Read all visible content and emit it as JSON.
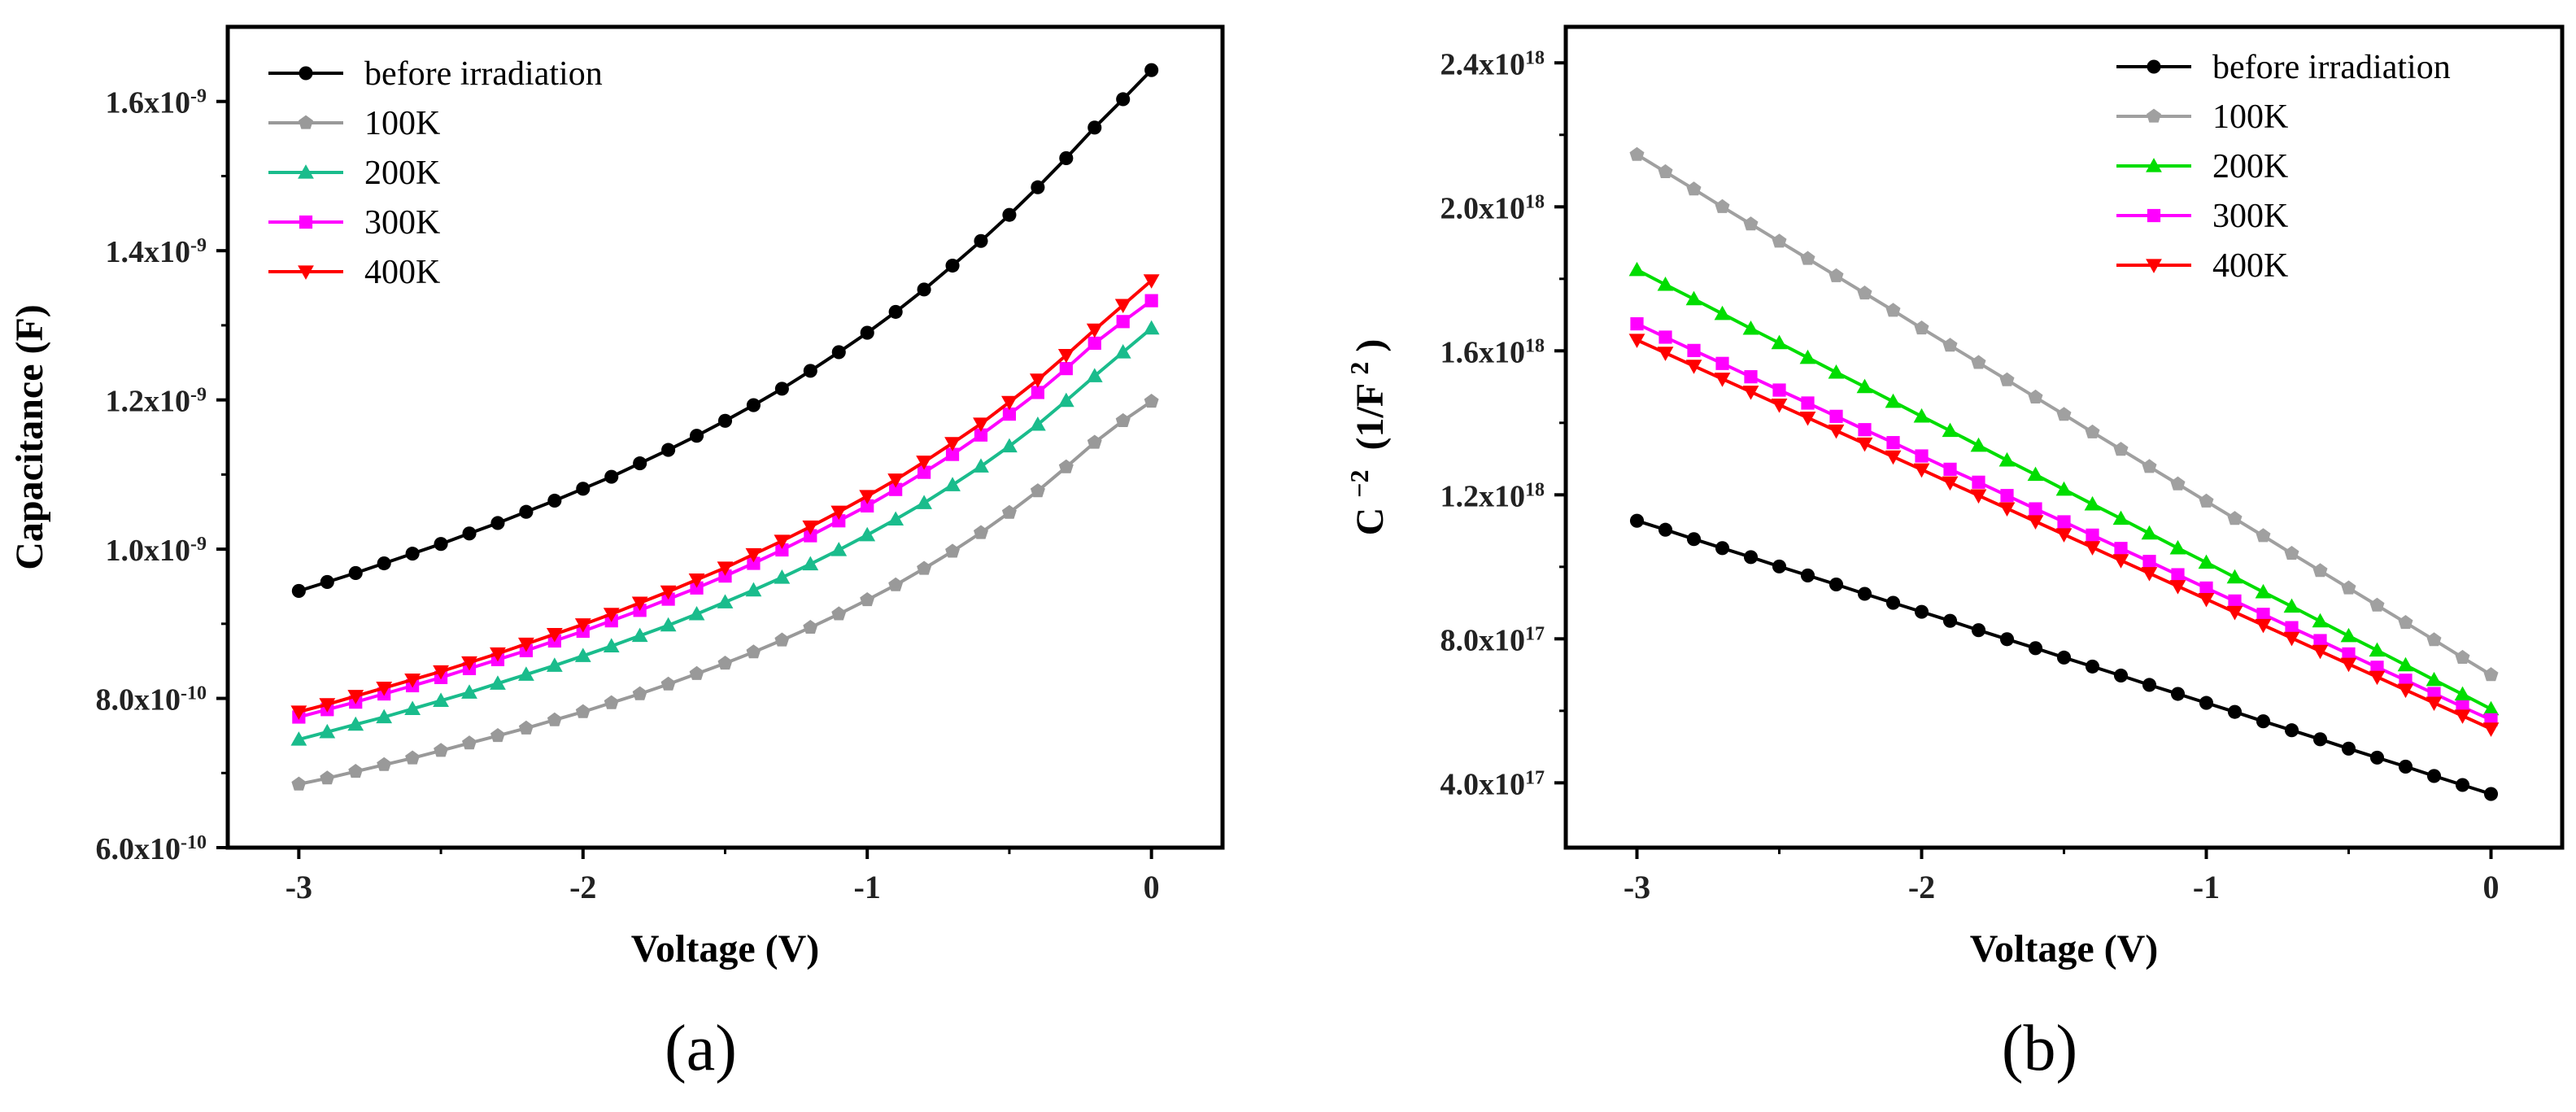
{
  "chart_data": [
    {
      "panel_label": "(a)",
      "type": "line",
      "xlabel": "Voltage (V)",
      "ylabel": "Capacitance (F)",
      "xlim": [
        -3.25,
        0.25
      ],
      "ylim": [
        6e-10,
        1.7e-09
      ],
      "x_ticks": [
        {
          "value": -3,
          "label": "-3"
        },
        {
          "value": -2,
          "label": "-2"
        },
        {
          "value": -1,
          "label": "-1"
        },
        {
          "value": 0,
          "label": "0"
        }
      ],
      "y_ticks": [
        {
          "value": 6e-10,
          "mant": "6.0x10",
          "exp": "-10"
        },
        {
          "value": 8e-10,
          "mant": "8.0x10",
          "exp": "-10"
        },
        {
          "value": 1e-09,
          "mant": "1.0x10",
          "exp": "-9"
        },
        {
          "value": 1.2e-09,
          "mant": "1.2x10",
          "exp": "-9"
        },
        {
          "value": 1.4e-09,
          "mant": "1.4x10",
          "exp": "-9"
        },
        {
          "value": 1.6e-09,
          "mant": "1.6x10",
          "exp": "-9"
        }
      ],
      "x": [
        -3.0,
        -2.9,
        -2.8,
        -2.7,
        -2.6,
        -2.5,
        -2.4,
        -2.3,
        -2.2,
        -2.1,
        -2.0,
        -1.9,
        -1.8,
        -1.7,
        -1.6,
        -1.5,
        -1.4,
        -1.3,
        -1.2,
        -1.1,
        -1.0,
        -0.9,
        -0.8,
        -0.7,
        -0.6,
        -0.5,
        -0.4,
        -0.3,
        -0.2,
        -0.1,
        0.0
      ],
      "series": [
        {
          "name": "before irradiation",
          "color": "#000000",
          "marker": "circle",
          "values": [
            9.44e-10,
            9.56e-10,
            9.68e-10,
            9.81e-10,
            9.94e-10,
            1.007e-09,
            1.021e-09,
            1.035e-09,
            1.05e-09,
            1.065e-09,
            1.081e-09,
            1.097e-09,
            1.115e-09,
            1.133e-09,
            1.152e-09,
            1.172e-09,
            1.193e-09,
            1.215e-09,
            1.239e-09,
            1.264e-09,
            1.29e-09,
            1.318e-09,
            1.348e-09,
            1.38e-09,
            1.413e-09,
            1.448e-09,
            1.485e-09,
            1.524e-09,
            1.565e-09,
            1.603e-09,
            1.642e-09
          ]
        },
        {
          "name": "100K",
          "color": "#999999",
          "marker": "pentagon",
          "values": [
            6.85e-10,
            6.93e-10,
            7.02e-10,
            7.11e-10,
            7.2e-10,
            7.3e-10,
            7.4e-10,
            7.5e-10,
            7.6e-10,
            7.71e-10,
            7.82e-10,
            7.94e-10,
            8.06e-10,
            8.19e-10,
            8.33e-10,
            8.47e-10,
            8.62e-10,
            8.78e-10,
            8.95e-10,
            9.13e-10,
            9.32e-10,
            9.52e-10,
            9.74e-10,
            9.97e-10,
            1.022e-09,
            1.049e-09,
            1.078e-09,
            1.11e-09,
            1.143e-09,
            1.172e-09,
            1.198e-09
          ]
        },
        {
          "name": "200K",
          "color": "#1abc8c",
          "marker": "triangle-up",
          "values": [
            7.45e-10,
            7.55e-10,
            7.65e-10,
            7.75e-10,
            7.86e-10,
            7.97e-10,
            8.08e-10,
            8.2e-10,
            8.32e-10,
            8.44e-10,
            8.57e-10,
            8.7e-10,
            8.84e-10,
            8.98e-10,
            9.13e-10,
            9.29e-10,
            9.45e-10,
            9.62e-10,
            9.8e-10,
            9.99e-10,
            1.019e-09,
            1.04e-09,
            1.062e-09,
            1.086e-09,
            1.111e-09,
            1.138e-09,
            1.167e-09,
            1.199e-09,
            1.232e-09,
            1.264e-09,
            1.296e-09
          ]
        },
        {
          "name": "300K",
          "color": "#ff00ff",
          "marker": "square",
          "values": [
            7.75e-10,
            7.85e-10,
            7.95e-10,
            8.06e-10,
            8.17e-10,
            8.28e-10,
            8.4e-10,
            8.52e-10,
            8.64e-10,
            8.77e-10,
            8.9e-10,
            9.04e-10,
            9.18e-10,
            9.33e-10,
            9.48e-10,
            9.64e-10,
            9.81e-10,
            9.99e-10,
            1.018e-09,
            1.038e-09,
            1.058e-09,
            1.08e-09,
            1.103e-09,
            1.127e-09,
            1.153e-09,
            1.181e-09,
            1.21e-09,
            1.242e-09,
            1.276e-09,
            1.305e-09,
            1.333e-09
          ]
        },
        {
          "name": "400K",
          "color": "#ff0000",
          "marker": "triangle-down",
          "values": [
            7.82e-10,
            7.92e-10,
            8.03e-10,
            8.14e-10,
            8.25e-10,
            8.36e-10,
            8.48e-10,
            8.6e-10,
            8.73e-10,
            8.86e-10,
            8.99e-10,
            9.13e-10,
            9.28e-10,
            9.43e-10,
            9.59e-10,
            9.75e-10,
            9.93e-10,
            1.011e-09,
            1.03e-09,
            1.05e-09,
            1.071e-09,
            1.093e-09,
            1.117e-09,
            1.142e-09,
            1.168e-09,
            1.197e-09,
            1.227e-09,
            1.26e-09,
            1.294e-09,
            1.327e-09,
            1.36e-09
          ]
        }
      ]
    },
    {
      "panel_label": "(b)",
      "type": "line",
      "xlabel": "Voltage (V)",
      "ylabel_base": "C",
      "ylabel_base_sup": "−2",
      "ylabel_unit": "(1/F",
      "ylabel_unit_sup": "2",
      "ylabel_close": ")",
      "xlim": [
        -3.25,
        0.25
      ],
      "ylim": [
        2.2e+17,
        2.5e+18
      ],
      "x_ticks": [
        {
          "value": -3,
          "label": "-3"
        },
        {
          "value": -2,
          "label": "-2"
        },
        {
          "value": -1,
          "label": "-1"
        },
        {
          "value": 0,
          "label": "0"
        }
      ],
      "y_ticks": [
        {
          "value": 4e+17,
          "mant": "4.0x10",
          "exp": "17"
        },
        {
          "value": 8e+17,
          "mant": "8.0x10",
          "exp": "17"
        },
        {
          "value": 1.2e+18,
          "mant": "1.2x10",
          "exp": "18"
        },
        {
          "value": 1.6e+18,
          "mant": "1.6x10",
          "exp": "18"
        },
        {
          "value": 2e+18,
          "mant": "2.0x10",
          "exp": "18"
        },
        {
          "value": 2.4e+18,
          "mant": "2.4x10",
          "exp": "18"
        }
      ],
      "x": [
        -3.0,
        -2.9,
        -2.8,
        -2.7,
        -2.6,
        -2.5,
        -2.4,
        -2.3,
        -2.2,
        -2.1,
        -2.0,
        -1.9,
        -1.8,
        -1.7,
        -1.6,
        -1.5,
        -1.4,
        -1.3,
        -1.2,
        -1.1,
        -1.0,
        -0.9,
        -0.8,
        -0.7,
        -0.6,
        -0.5,
        -0.4,
        -0.3,
        -0.2,
        -0.1,
        0.0
      ],
      "series": [
        {
          "name": "before irradiation",
          "color": "#000000",
          "marker": "circle",
          "values": [
            1.128e+18,
            1.103e+18,
            1.077e+18,
            1.052e+18,
            1.027e+18,
            1.001e+18,
            9.76e+17,
            9.51e+17,
            9.25e+17,
            9e+17,
            8.75e+17,
            8.5e+17,
            8.24e+17,
            7.99e+17,
            7.74e+17,
            7.48e+17,
            7.23e+17,
            6.98e+17,
            6.72e+17,
            6.47e+17,
            6.22e+17,
            5.97e+17,
            5.71e+17,
            5.46e+17,
            5.21e+17,
            4.95e+17,
            4.7e+17,
            4.45e+17,
            4.19e+17,
            3.94e+17,
            3.69e+17
          ]
        },
        {
          "name": "100K",
          "color": "#a0a0a0",
          "marker": "pentagon",
          "values": [
            2.145e+18,
            2.097e+18,
            2.049e+18,
            2e+18,
            1.952e+18,
            1.904e+18,
            1.856e+18,
            1.808e+18,
            1.76e+18,
            1.712e+18,
            1.663e+18,
            1.615e+18,
            1.567e+18,
            1.519e+18,
            1.471e+18,
            1.423e+18,
            1.374e+18,
            1.326e+18,
            1.278e+18,
            1.23e+18,
            1.182e+18,
            1.134e+18,
            1.086e+18,
            1.037e+18,
            9.89e+17,
            9.41e+17,
            8.93e+17,
            8.45e+17,
            7.97e+17,
            7.48e+17,
            7e+17
          ]
        },
        {
          "name": "200K",
          "color": "#00dd00",
          "marker": "triangle-up",
          "values": [
            1.825e+18,
            1.784e+18,
            1.744e+18,
            1.703e+18,
            1.662e+18,
            1.622e+18,
            1.581e+18,
            1.54e+18,
            1.5e+18,
            1.459e+18,
            1.418e+18,
            1.378e+18,
            1.337e+18,
            1.296e+18,
            1.256e+18,
            1.215e+18,
            1.174e+18,
            1.134e+18,
            1.093e+18,
            1.052e+18,
            1.012e+18,
            9.71e+17,
            9.3e+17,
            8.9e+17,
            8.49e+17,
            8.08e+17,
            7.68e+17,
            7.27e+17,
            6.86e+17,
            6.46e+17,
            6.05e+17
          ]
        },
        {
          "name": "300K",
          "color": "#ff00ff",
          "marker": "square",
          "values": [
            1.675e+18,
            1.638e+18,
            1.601e+18,
            1.565e+18,
            1.528e+18,
            1.491e+18,
            1.455e+18,
            1.418e+18,
            1.381e+18,
            1.345e+18,
            1.308e+18,
            1.271e+18,
            1.235e+18,
            1.198e+18,
            1.161e+18,
            1.125e+18,
            1.088e+18,
            1.051e+18,
            1.015e+18,
            9.78e+17,
            9.41e+17,
            9.05e+17,
            8.68e+17,
            8.31e+17,
            7.95e+17,
            7.58e+17,
            7.21e+17,
            6.85e+17,
            6.48e+17,
            6.11e+17,
            5.75e+17
          ]
        },
        {
          "name": "400K",
          "color": "#ff0000",
          "marker": "triangle-down",
          "values": [
            1.63e+18,
            1.594e+18,
            1.558e+18,
            1.522e+18,
            1.486e+18,
            1.45e+18,
            1.414e+18,
            1.378e+18,
            1.342e+18,
            1.306e+18,
            1.27e+18,
            1.234e+18,
            1.198e+18,
            1.162e+18,
            1.126e+18,
            1.09e+18,
            1.054e+18,
            1.018e+18,
            9.82e+17,
            9.46e+17,
            9.1e+17,
            8.74e+17,
            8.38e+17,
            8.02e+17,
            7.66e+17,
            7.3e+17,
            6.94e+17,
            6.58e+17,
            6.22e+17,
            5.86e+17,
            5.5e+17
          ]
        }
      ]
    }
  ]
}
